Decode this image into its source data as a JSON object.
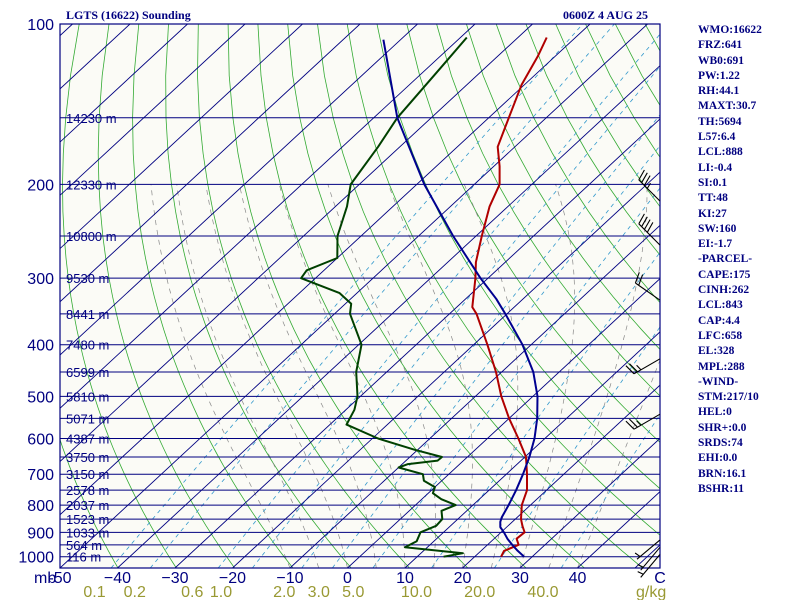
{
  "chart_data": {
    "type": "line",
    "title": "LGTS (16622) Sounding",
    "datetime": "0600Z  4 AUG 25",
    "pressure_ticks": [
      {
        "p": 100,
        "label": "100"
      },
      {
        "p": 200,
        "label": "200"
      },
      {
        "p": 300,
        "label": "300"
      },
      {
        "p": 400,
        "label": "400"
      },
      {
        "p": 500,
        "label": "500"
      },
      {
        "p": 600,
        "label": "600"
      },
      {
        "p": 700,
        "label": "700"
      },
      {
        "p": 800,
        "label": "800"
      },
      {
        "p": 900,
        "label": "900"
      },
      {
        "p": 1000,
        "label": "1000"
      }
    ],
    "height_labels": [
      {
        "p": 150,
        "label": "14230 m"
      },
      {
        "p": 200,
        "label": "12330 m"
      },
      {
        "p": 250,
        "label": "10800 m"
      },
      {
        "p": 300,
        "label": "9530 m"
      },
      {
        "p": 350,
        "label": "8441 m"
      },
      {
        "p": 400,
        "label": "7480 m"
      },
      {
        "p": 450,
        "label": "6599 m"
      },
      {
        "p": 500,
        "label": "5810 m"
      },
      {
        "p": 550,
        "label": "5071 m"
      },
      {
        "p": 600,
        "label": "4387 m"
      },
      {
        "p": 650,
        "label": "3750 m"
      },
      {
        "p": 700,
        "label": "3150 m"
      },
      {
        "p": 750,
        "label": "2578 m"
      },
      {
        "p": 800,
        "label": "2037 m"
      },
      {
        "p": 850,
        "label": "1523 m"
      },
      {
        "p": 900,
        "label": "1033 m"
      },
      {
        "p": 950,
        "label": "564 m"
      },
      {
        "p": 1000,
        "label": "116 m"
      }
    ],
    "x_ticks": [
      {
        "t": -50,
        "label": "-50"
      },
      {
        "t": -40,
        "label": "−40"
      },
      {
        "t": -30,
        "label": "−30"
      },
      {
        "t": -20,
        "label": "−20"
      },
      {
        "t": -10,
        "label": "−10"
      },
      {
        "t": 0,
        "label": "0"
      },
      {
        "t": 10,
        "label": "10"
      },
      {
        "t": 20,
        "label": "20"
      },
      {
        "t": 30,
        "label": "30"
      },
      {
        "t": 40,
        "label": "40"
      }
    ],
    "x_unit": "C",
    "p_unit": "mb",
    "mixing_ratio_labels": [
      {
        "t": -44,
        "label": "0.1"
      },
      {
        "t": -37,
        "label": "0.2"
      },
      {
        "t": -27,
        "label": "0.6"
      },
      {
        "t": -22,
        "label": "1.0"
      },
      {
        "t": -11,
        "label": "2.0"
      },
      {
        "t": -5,
        "label": "3.0"
      },
      {
        "t": 1,
        "label": "5.0"
      },
      {
        "t": 12,
        "label": "10.0"
      },
      {
        "t": 23,
        "label": "20.0"
      },
      {
        "t": 34,
        "label": "40.0"
      }
    ],
    "mixing_ratio_unit": "g/kg",
    "xlim": [
      -50,
      50
    ],
    "plim": [
      1050,
      100
    ],
    "series": [
      {
        "key": "temperature",
        "color": "#b00000",
        "points": [
          [
            1000,
            24.6
          ],
          [
            975,
            24.0
          ],
          [
            950,
            25.4
          ],
          [
            925,
            23.9
          ],
          [
            900,
            24.1
          ],
          [
            875,
            22.5
          ],
          [
            850,
            21.0
          ],
          [
            800,
            18.5
          ],
          [
            750,
            16.6
          ],
          [
            700,
            13.6
          ],
          [
            650,
            10.2
          ],
          [
            600,
            5.4
          ],
          [
            550,
            0.0
          ],
          [
            500,
            -5.5
          ],
          [
            450,
            -11.0
          ],
          [
            400,
            -17.6
          ],
          [
            350,
            -25.3
          ],
          [
            340,
            -27.3
          ],
          [
            300,
            -32.2
          ],
          [
            280,
            -35.1
          ],
          [
            250,
            -39.0
          ],
          [
            220,
            -43.2
          ],
          [
            200,
            -45.6
          ],
          [
            185,
            -49.0
          ],
          [
            170,
            -53.0
          ],
          [
            150,
            -56.5
          ],
          [
            130,
            -60.5
          ],
          [
            115,
            -63.0
          ],
          [
            106,
            -65.0
          ]
        ]
      },
      {
        "key": "dewpoint",
        "color": "#004000",
        "points": [
          [
            1000,
            14.6
          ],
          [
            985,
            17.3
          ],
          [
            960,
            6.1
          ],
          [
            935,
            7.0
          ],
          [
            900,
            6.0
          ],
          [
            875,
            7.5
          ],
          [
            850,
            7.3
          ],
          [
            820,
            5.6
          ],
          [
            800,
            7.0
          ],
          [
            780,
            3.4
          ],
          [
            760,
            0.8
          ],
          [
            740,
            0.0
          ],
          [
            720,
            -3.1
          ],
          [
            700,
            -4.5
          ],
          [
            680,
            -10.0
          ],
          [
            670,
            -9.0
          ],
          [
            660,
            -4.5
          ],
          [
            650,
            -4.4
          ],
          [
            630,
            -10.5
          ],
          [
            600,
            -19.0
          ],
          [
            565,
            -27.1
          ],
          [
            530,
            -28.5
          ],
          [
            500,
            -30.5
          ],
          [
            450,
            -35.3
          ],
          [
            400,
            -39.5
          ],
          [
            350,
            -47.3
          ],
          [
            335,
            -49.0
          ],
          [
            320,
            -53.0
          ],
          [
            300,
            -62.5
          ],
          [
            290,
            -63.0
          ],
          [
            275,
            -60.0
          ],
          [
            250,
            -64.1
          ],
          [
            220,
            -68.0
          ],
          [
            200,
            -71.5
          ],
          [
            170,
            -73.8
          ],
          [
            150,
            -75.9
          ],
          [
            120,
            -77.8
          ],
          [
            106,
            -78.9
          ]
        ]
      },
      {
        "key": "parcel",
        "color": "#000090",
        "points": [
          [
            1000,
            28.6
          ],
          [
            975,
            26.4
          ],
          [
            950,
            24.3
          ],
          [
            925,
            22.3
          ],
          [
            900,
            20.5
          ],
          [
            880,
            18.9
          ],
          [
            860,
            17.9
          ],
          [
            843,
            17.3
          ],
          [
            800,
            16.2
          ],
          [
            750,
            14.7
          ],
          [
            700,
            12.9
          ],
          [
            650,
            10.8
          ],
          [
            600,
            8.2
          ],
          [
            550,
            4.9
          ],
          [
            500,
            0.8
          ],
          [
            450,
            -4.5
          ],
          [
            400,
            -11.5
          ],
          [
            350,
            -20.3
          ],
          [
            328,
            -24.7
          ],
          [
            300,
            -31.3
          ],
          [
            250,
            -44.0
          ],
          [
            200,
            -58.7
          ],
          [
            150,
            -75.9
          ],
          [
            107,
            -93.0
          ]
        ]
      }
    ],
    "wind_barbs": [
      {
        "p": 215,
        "dir": 315,
        "kt": 35
      },
      {
        "p": 260,
        "dir": 315,
        "kt": 40
      },
      {
        "p": 330,
        "dir": 305,
        "kt": 20
      },
      {
        "p": 425,
        "dir": 240,
        "kt": 25
      },
      {
        "p": 540,
        "dir": 240,
        "kt": 25
      },
      {
        "p": 930,
        "dir": 230,
        "kt": 5
      },
      {
        "p": 960,
        "dir": 220,
        "kt": 5
      },
      {
        "p": 990,
        "dir": 220,
        "kt": 5
      }
    ]
  },
  "indices": [
    "WMO:16622",
    "FRZ:641",
    "WB0:691",
    "PW:1.22",
    "RH:44.1",
    "MAXT:30.7",
    "TH:5694",
    "L57:6.4",
    "LCL:888",
    "LI:-0.4",
    "SI:0.1",
    "TT:48",
    "KI:27",
    "SW:160",
    "EI:-1.7",
    "-PARCEL-",
    "CAPE:175",
    "CINH:262",
    "LCL:843",
    "CAP:4.4",
    "LFC:658",
    "EL:328",
    "MPL:288",
    "-WIND-",
    "STM:217/10",
    "HEL:0",
    "SHR+:0.0",
    "SRDS:74",
    "EHI:0.0",
    "BRN:16.1",
    "BSHR:11"
  ]
}
